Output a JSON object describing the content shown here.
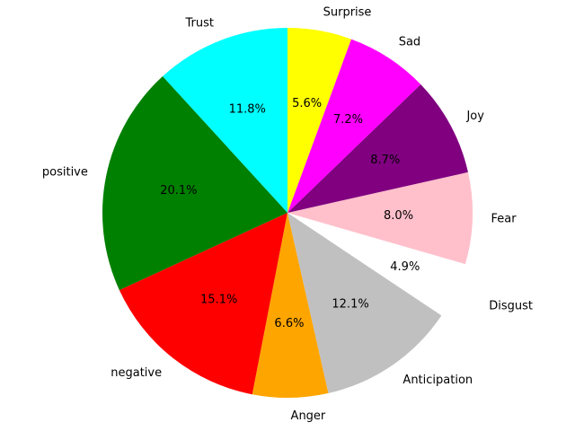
{
  "chart_data": {
    "type": "pie",
    "title": "",
    "start_angle_deg": 90,
    "direction": "counterclockwise",
    "slices": [
      {
        "label": "Trust",
        "value": 11.8,
        "pct_label": "11.8%",
        "color": "#00ffff",
        "explode": false
      },
      {
        "label": "positive",
        "value": 20.1,
        "pct_label": "20.1%",
        "color": "#008000",
        "explode": false
      },
      {
        "label": "negative",
        "value": 15.1,
        "pct_label": "15.1%",
        "color": "#ff0000",
        "explode": false
      },
      {
        "label": "Anger",
        "value": 6.6,
        "pct_label": "6.6%",
        "color": "#ffa500",
        "explode": false
      },
      {
        "label": "Anticipation",
        "value": 12.1,
        "pct_label": "12.1%",
        "color": "#c0c0c0",
        "explode": false
      },
      {
        "label": "Disgust",
        "value": 4.9,
        "pct_label": "4.9%",
        "color": "#ffffff",
        "explode": true
      },
      {
        "label": "Fear",
        "value": 8.0,
        "pct_label": "8.0%",
        "color": "#ffc0cb",
        "explode": false
      },
      {
        "label": "Joy",
        "value": 8.7,
        "pct_label": "8.7%",
        "color": "#800080",
        "explode": false
      },
      {
        "label": "Sad",
        "value": 7.2,
        "pct_label": "7.2%",
        "color": "#ff00ff",
        "explode": false
      },
      {
        "label": "Surprise",
        "value": 5.6,
        "pct_label": "5.6%",
        "color": "#ffff00",
        "explode": false
      }
    ]
  }
}
